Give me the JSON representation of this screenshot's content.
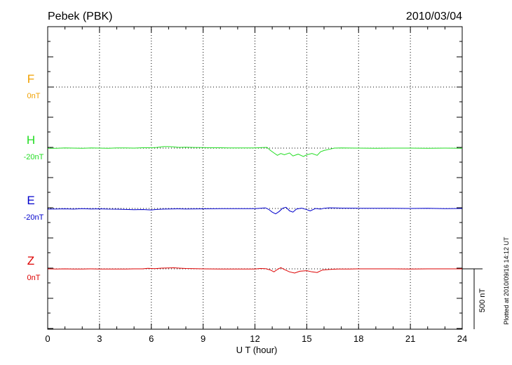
{
  "chart_data": {
    "type": "line",
    "title": "Pebek (PBK)",
    "date": "2010/03/04",
    "xlabel": "U T (hour)",
    "xlim": [
      0,
      24
    ],
    "xticks": [
      "0",
      "3",
      "6",
      "9",
      "12",
      "15",
      "18",
      "21",
      "24"
    ],
    "grid": true,
    "scale_label": "500 nT",
    "footnote": "Plotted at 2010/09/16 14:12 UT",
    "channels": [
      {
        "name": "F",
        "offset": "0nT",
        "color": "#f0a000",
        "values": []
      },
      {
        "name": "H",
        "offset": "-20nT",
        "color": "#22dd22",
        "points": [
          [
            0,
            -2
          ],
          [
            0.5,
            -1
          ],
          [
            1,
            1
          ],
          [
            1.5,
            0
          ],
          [
            2,
            -1
          ],
          [
            2.5,
            1
          ],
          [
            3,
            0
          ],
          [
            3.5,
            -1
          ],
          [
            4,
            2
          ],
          [
            4.5,
            1
          ],
          [
            5,
            0
          ],
          [
            5.5,
            3
          ],
          [
            6,
            3
          ],
          [
            6.3,
            5
          ],
          [
            6.7,
            12
          ],
          [
            7,
            12
          ],
          [
            7.3,
            10
          ],
          [
            7.6,
            6
          ],
          [
            8,
            7
          ],
          [
            8.5,
            5
          ],
          [
            9,
            4
          ],
          [
            9.5,
            3
          ],
          [
            10,
            3
          ],
          [
            10.5,
            2
          ],
          [
            11,
            1
          ],
          [
            11.5,
            2
          ],
          [
            12,
            2
          ],
          [
            12.4,
            4
          ],
          [
            12.7,
            6
          ],
          [
            12.9,
            -20
          ],
          [
            13.1,
            -40
          ],
          [
            13.3,
            -60
          ],
          [
            13.5,
            -45
          ],
          [
            13.7,
            -55
          ],
          [
            14,
            -40
          ],
          [
            14.2,
            -65
          ],
          [
            14.5,
            -50
          ],
          [
            14.8,
            -70
          ],
          [
            15,
            -55
          ],
          [
            15.3,
            -45
          ],
          [
            15.6,
            -60
          ],
          [
            15.8,
            -30
          ],
          [
            16,
            -20
          ],
          [
            16.3,
            -10
          ],
          [
            16.6,
            0
          ],
          [
            17,
            1
          ],
          [
            18,
            0
          ],
          [
            19,
            -1
          ],
          [
            20,
            0
          ],
          [
            21,
            0
          ],
          [
            22,
            -1
          ],
          [
            23,
            0
          ],
          [
            24,
            -2
          ]
        ]
      },
      {
        "name": "E",
        "offset": "-20nT",
        "color": "#0000cc",
        "points": [
          [
            0,
            -5
          ],
          [
            0.5,
            -4
          ],
          [
            1,
            -3
          ],
          [
            1.5,
            -5
          ],
          [
            2,
            -2
          ],
          [
            2.5,
            -4
          ],
          [
            3,
            -3
          ],
          [
            3.5,
            -5
          ],
          [
            4,
            -6
          ],
          [
            4.5,
            -8
          ],
          [
            5,
            -10
          ],
          [
            5.5,
            -9
          ],
          [
            6,
            -12
          ],
          [
            6.3,
            -8
          ],
          [
            6.7,
            -5
          ],
          [
            7,
            -4
          ],
          [
            7.5,
            -3
          ],
          [
            8,
            -4
          ],
          [
            9,
            -3
          ],
          [
            10,
            -2
          ],
          [
            11,
            -2
          ],
          [
            11.5,
            -1
          ],
          [
            12,
            -2
          ],
          [
            12.3,
            2
          ],
          [
            12.6,
            5
          ],
          [
            12.8,
            -8
          ],
          [
            13,
            -30
          ],
          [
            13.2,
            -45
          ],
          [
            13.4,
            -25
          ],
          [
            13.6,
            2
          ],
          [
            13.8,
            10
          ],
          [
            14,
            -20
          ],
          [
            14.2,
            -30
          ],
          [
            14.4,
            -5
          ],
          [
            14.7,
            3
          ],
          [
            15,
            -10
          ],
          [
            15.2,
            -20
          ],
          [
            15.5,
            0
          ],
          [
            15.8,
            -5
          ],
          [
            16,
            2
          ],
          [
            16.3,
            5
          ],
          [
            16.7,
            4
          ],
          [
            17,
            3
          ],
          [
            18,
            2
          ],
          [
            19,
            1
          ],
          [
            20,
            2
          ],
          [
            21,
            0
          ],
          [
            22,
            1
          ],
          [
            23,
            -1
          ],
          [
            24,
            0
          ]
        ]
      },
      {
        "name": "Z",
        "offset": "0nT",
        "color": "#dd0000",
        "points": [
          [
            0,
            0
          ],
          [
            0.5,
            -2
          ],
          [
            1,
            0
          ],
          [
            1.5,
            -1
          ],
          [
            2,
            -1
          ],
          [
            2.5,
            0
          ],
          [
            3,
            -1
          ],
          [
            3.5,
            -2
          ],
          [
            4,
            -2
          ],
          [
            4.5,
            -1
          ],
          [
            5,
            0
          ],
          [
            5.5,
            0
          ],
          [
            5.8,
            4
          ],
          [
            6.2,
            2
          ],
          [
            6.6,
            6
          ],
          [
            7,
            7
          ],
          [
            7.3,
            9
          ],
          [
            7.6,
            6
          ],
          [
            8,
            3
          ],
          [
            8.5,
            2
          ],
          [
            9,
            0
          ],
          [
            10,
            -1
          ],
          [
            11,
            -1
          ],
          [
            11.5,
            -2
          ],
          [
            12,
            -1
          ],
          [
            12.3,
            3
          ],
          [
            12.6,
            2
          ],
          [
            12.9,
            -10
          ],
          [
            13.1,
            -25
          ],
          [
            13.3,
            -5
          ],
          [
            13.5,
            10
          ],
          [
            13.7,
            -5
          ],
          [
            14,
            -25
          ],
          [
            14.3,
            -35
          ],
          [
            14.6,
            -20
          ],
          [
            15,
            -15
          ],
          [
            15.3,
            -25
          ],
          [
            15.6,
            -30
          ],
          [
            15.9,
            -10
          ],
          [
            16.3,
            -5
          ],
          [
            16.8,
            -2
          ],
          [
            17.5,
            -1
          ],
          [
            18,
            0
          ],
          [
            19,
            0
          ],
          [
            20,
            0
          ],
          [
            21,
            -1
          ],
          [
            22,
            0
          ],
          [
            23,
            0
          ],
          [
            24,
            0
          ]
        ]
      }
    ]
  }
}
